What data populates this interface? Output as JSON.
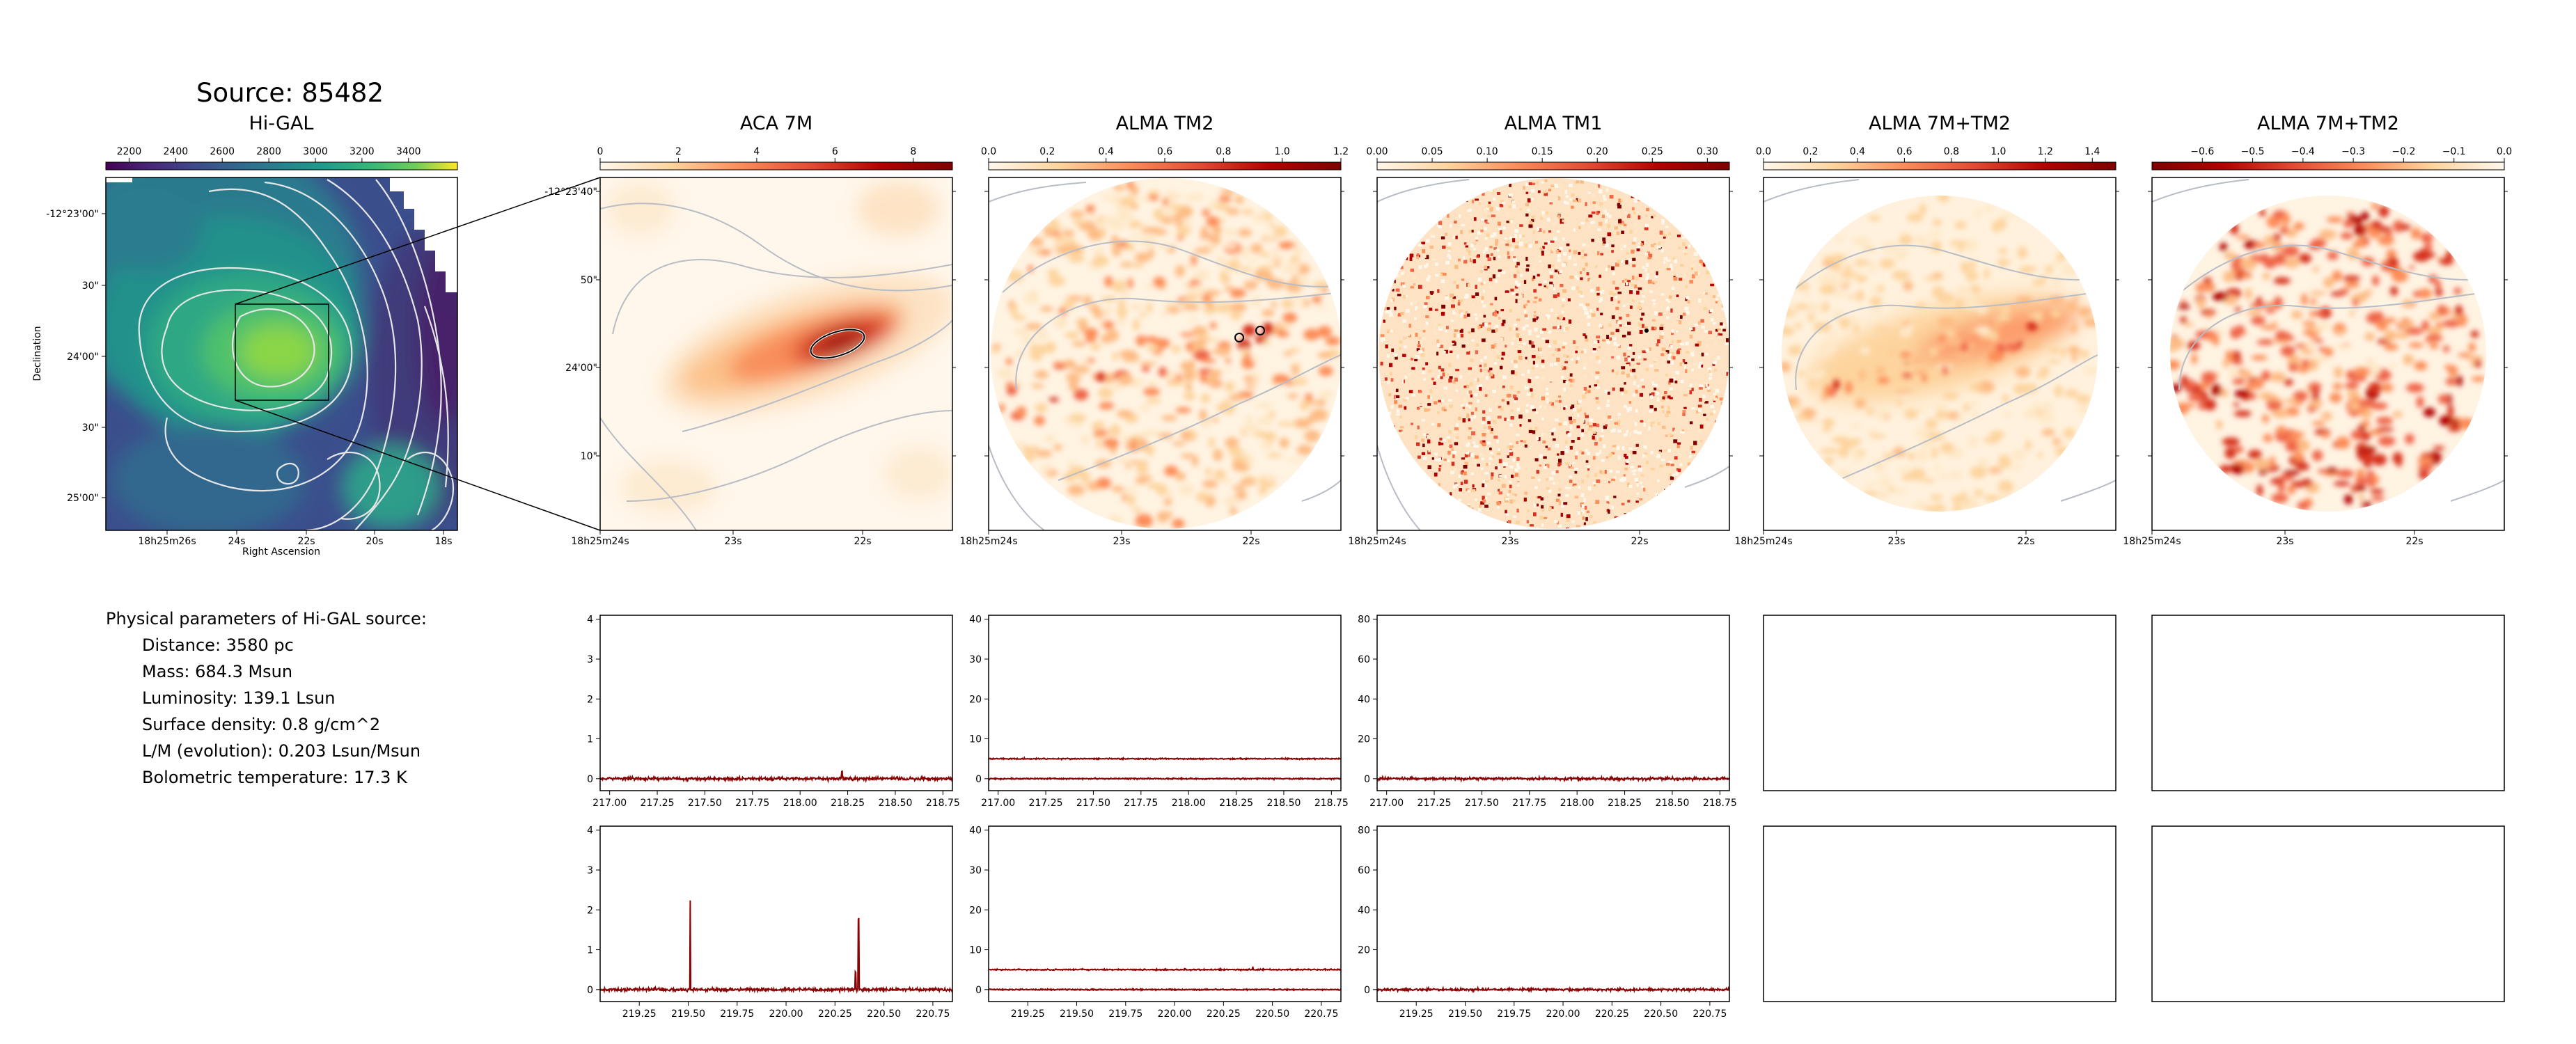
{
  "source_title": "Source: 85482",
  "hi_gal": {
    "title": "Hi-GAL",
    "cbar_ticks": [
      "2200",
      "2400",
      "2600",
      "2800",
      "3000",
      "3200",
      "3400"
    ],
    "xticks": [
      "18h25m26s",
      "24s",
      "22s",
      "20s",
      "18s"
    ],
    "yticks": [
      "-12°23'00\"",
      "30\"",
      "24'00\"",
      "30\"",
      "25'00\""
    ],
    "xlabel": "Right Ascension",
    "ylabel": "Declination",
    "colormap": "viridis"
  },
  "maps": [
    {
      "title": "ACA 7M",
      "cbar_ticks": [
        "0",
        "2",
        "4",
        "6",
        "8"
      ],
      "cbar_range": [
        0,
        9.0
      ],
      "colormap": "OrRd"
    },
    {
      "title": "ALMA TM2",
      "cbar_ticks": [
        "0.0",
        "0.2",
        "0.4",
        "0.6",
        "0.8",
        "1.0",
        "1.2"
      ],
      "cbar_range": [
        0,
        1.2
      ],
      "colormap": "OrRd"
    },
    {
      "title": "ALMA TM1",
      "cbar_ticks": [
        "0.00",
        "0.05",
        "0.10",
        "0.15",
        "0.20",
        "0.25",
        "0.30"
      ],
      "cbar_range": [
        0,
        0.32
      ],
      "colormap": "OrRd"
    },
    {
      "title": "ALMA 7M+TM2",
      "cbar_ticks": [
        "0.0",
        "0.2",
        "0.4",
        "0.6",
        "0.8",
        "1.0",
        "1.2",
        "1.4"
      ],
      "cbar_range": [
        0,
        1.5
      ],
      "colormap": "OrRd"
    },
    {
      "title": "ALMA 7M+TM2",
      "cbar_ticks": [
        "−0.6",
        "−0.5",
        "−0.4",
        "−0.3",
        "−0.2",
        "−0.1",
        "0.0"
      ],
      "cbar_range": [
        -0.7,
        0.0
      ],
      "colormap": "OrRd_r"
    }
  ],
  "map_xticks": [
    "18h25m24s",
    "23s",
    "22s"
  ],
  "aca_yticks": [
    "-12°23'40\"",
    "50\"",
    "24'00\"",
    "10\""
  ],
  "physical": {
    "heading": "Physical parameters of Hi-GAL source:",
    "lines": [
      "Distance: 3580 pc",
      "Mass: 684.3 Msun",
      "Luminosity: 139.1 Lsun",
      "Surface density: 0.8 g/cm^2",
      "L/M (evolution): 0.203 Lsun/Msun",
      "Bolometric temperature: 17.3 K"
    ]
  },
  "chart_data": [
    {
      "type": "line",
      "panel": "ACA 7M spectrum, band 1",
      "xlim": [
        216.95,
        218.8
      ],
      "ylim": [
        -0.3,
        4.1
      ],
      "xticks": [
        "217.00",
        "217.25",
        "217.50",
        "217.75",
        "218.00",
        "218.25",
        "218.50",
        "218.75"
      ],
      "yticks": [
        "0",
        "1",
        "2",
        "3",
        "4"
      ],
      "series": [
        {
          "baseline": 0,
          "noise": 0.04,
          "spikes": [
            [
              218.22,
              0.18
            ]
          ]
        }
      ]
    },
    {
      "type": "line",
      "panel": "ALMA TM2 spectrum, band 1",
      "xlim": [
        216.95,
        218.8
      ],
      "ylim": [
        -3,
        41
      ],
      "xticks": [
        "217.00",
        "217.25",
        "217.50",
        "217.75",
        "218.00",
        "218.25",
        "218.50",
        "218.75"
      ],
      "yticks": [
        "0",
        "10",
        "20",
        "30",
        "40"
      ],
      "series": [
        {
          "baseline": 5,
          "noise": 0.15,
          "spikes": []
        },
        {
          "baseline": 0,
          "noise": 0.15,
          "spikes": []
        }
      ]
    },
    {
      "type": "line",
      "panel": "ALMA TM1 spectrum, band 1",
      "xlim": [
        216.95,
        218.8
      ],
      "ylim": [
        -6,
        82
      ],
      "xticks": [
        "217.00",
        "217.25",
        "217.50",
        "217.75",
        "218.00",
        "218.25",
        "218.50",
        "218.75"
      ],
      "yticks": [
        "0",
        "20",
        "40",
        "60",
        "80"
      ],
      "series": [
        {
          "baseline": 0,
          "noise": 0.6,
          "spikes": []
        }
      ]
    },
    {
      "type": "line",
      "panel": "ACA 7M spectrum, band 2",
      "xlim": [
        219.05,
        220.85
      ],
      "ylim": [
        -0.3,
        4.1
      ],
      "xticks": [
        "219.25",
        "219.50",
        "219.75",
        "220.00",
        "220.25",
        "220.50",
        "220.75"
      ],
      "yticks": [
        "0",
        "1",
        "2",
        "3",
        "4"
      ],
      "series": [
        {
          "baseline": 0,
          "noise": 0.04,
          "spikes": [
            [
              219.51,
              2.25
            ],
            [
              220.37,
              1.8
            ],
            [
              220.355,
              0.45
            ]
          ]
        }
      ]
    },
    {
      "type": "line",
      "panel": "ALMA TM2 spectrum, band 2",
      "xlim": [
        219.05,
        220.85
      ],
      "ylim": [
        -3,
        41
      ],
      "xticks": [
        "219.25",
        "219.50",
        "219.75",
        "220.00",
        "220.25",
        "220.50",
        "220.75"
      ],
      "yticks": [
        "0",
        "10",
        "20",
        "30",
        "40"
      ],
      "series": [
        {
          "baseline": 5,
          "noise": 0.15,
          "spikes": [
            [
              220.4,
              0.8
            ]
          ]
        },
        {
          "baseline": 0,
          "noise": 0.15,
          "spikes": []
        }
      ]
    },
    {
      "type": "line",
      "panel": "ALMA TM1 spectrum, band 2",
      "xlim": [
        219.05,
        220.85
      ],
      "ylim": [
        -6,
        82
      ],
      "xticks": [
        "219.25",
        "219.50",
        "219.75",
        "220.00",
        "220.25",
        "220.50",
        "220.75"
      ],
      "yticks": [
        "0",
        "20",
        "40",
        "60",
        "80"
      ],
      "series": [
        {
          "baseline": 0,
          "noise": 0.6,
          "spikes": []
        }
      ]
    }
  ],
  "colors": {
    "spectrum": "#8b0000",
    "contour_hi": "#e6e6e6",
    "contour_map": "#b8bcc4",
    "beam": "#000000"
  }
}
